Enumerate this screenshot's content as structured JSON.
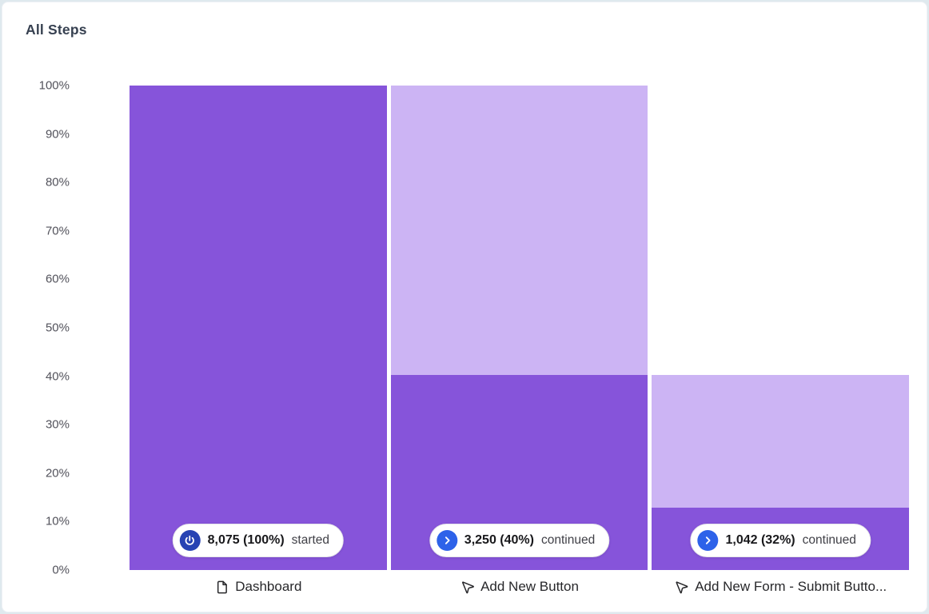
{
  "page": {
    "title": "All Steps"
  },
  "chart_data": {
    "type": "bar",
    "subtype": "funnel",
    "title": "All Steps",
    "xlabel": "",
    "ylabel": "",
    "ylim": [
      0,
      100
    ],
    "y_ticks": [
      "100%",
      "90%",
      "80%",
      "70%",
      "60%",
      "50%",
      "40%",
      "30%",
      "20%",
      "10%",
      "0%"
    ],
    "grid": false,
    "legend": false,
    "colors": {
      "converted_bar": "#8654da",
      "dropped_bar": "#ccb4f4",
      "start_badge_icon_bg": "#2743b3",
      "continue_badge_icon_bg": "#2d62e9"
    },
    "steps": [
      {
        "label": "Dashboard",
        "label_icon": "file-icon",
        "badge_icon": "power-icon",
        "badge_value": "8,075 (100%)",
        "badge_suffix": "started",
        "count": 8075,
        "pct_label": "100%",
        "entered_pct": 100,
        "converted_pct": 100
      },
      {
        "label": "Add New Button",
        "label_icon": "mouse-pointer-icon",
        "badge_icon": "chevron-right-icon",
        "badge_value": "3,250 (40%)",
        "badge_suffix": "continued",
        "count": 3250,
        "pct_label": "40%",
        "entered_pct": 100,
        "converted_pct": 40.2
      },
      {
        "label": "Add New Form - Submit Butto...",
        "label_icon": "mouse-pointer-icon",
        "badge_icon": "chevron-right-icon",
        "badge_value": "1,042 (32%)",
        "badge_suffix": "continued",
        "count": 1042,
        "pct_label": "32%",
        "entered_pct": 40.2,
        "converted_pct": 12.9
      }
    ]
  }
}
